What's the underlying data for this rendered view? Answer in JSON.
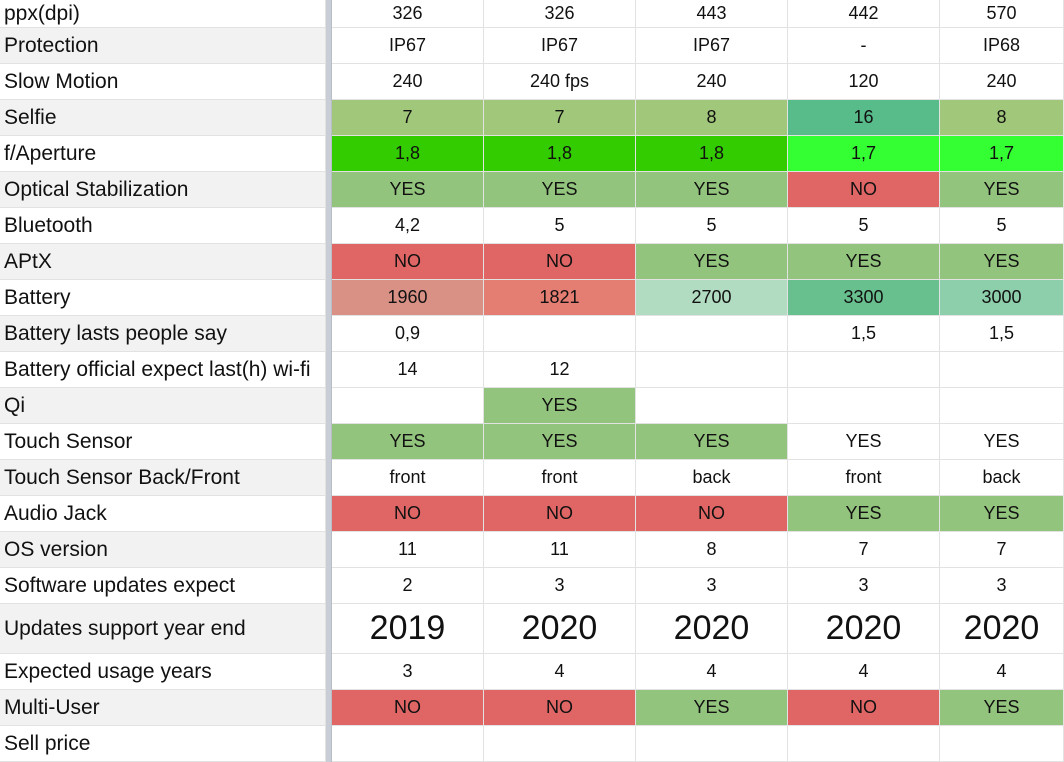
{
  "rows": [
    {
      "label": "ppx(dpi)",
      "values": [
        "326",
        "326",
        "443",
        "442",
        "570"
      ],
      "colors": [
        "",
        "",
        "",
        "",
        ""
      ]
    },
    {
      "label": "Protection",
      "values": [
        "IP67",
        "IP67",
        "IP67",
        "-",
        "IP68"
      ],
      "colors": [
        "",
        "",
        "",
        "",
        ""
      ]
    },
    {
      "label": "Slow Motion",
      "values": [
        "240",
        "240 fps",
        "240",
        "120",
        "240"
      ],
      "colors": [
        "",
        "",
        "",
        "",
        ""
      ]
    },
    {
      "label": "Selfie",
      "values": [
        "7",
        "7",
        "8",
        "16",
        "8"
      ],
      "colors": [
        "#a1c77a",
        "#a1c77a",
        "#a1c77a",
        "#57bb8a",
        "#a1c77a"
      ]
    },
    {
      "label": "f/Aperture",
      "values": [
        "1,8",
        "1,8",
        "1,8",
        "1,7",
        "1,7"
      ],
      "colors": [
        "#33cc00",
        "#33cc00",
        "#33cc00",
        "#33ff33",
        "#33ff33"
      ]
    },
    {
      "label": "Optical Stabilization",
      "values": [
        "YES",
        "YES",
        "YES",
        "NO",
        "YES"
      ],
      "colors": [
        "#93c47d",
        "#93c47d",
        "#93c47d",
        "#e06666",
        "#93c47d"
      ]
    },
    {
      "label": "Bluetooth",
      "values": [
        "4,2",
        "5",
        "5",
        "5",
        "5"
      ],
      "colors": [
        "",
        "",
        "",
        "",
        ""
      ]
    },
    {
      "label": "APtX",
      "values": [
        "NO",
        "NO",
        "YES",
        "YES",
        "YES"
      ],
      "colors": [
        "#e06666",
        "#e06666",
        "#93c47d",
        "#93c47d",
        "#93c47d"
      ]
    },
    {
      "label": "Battery",
      "values": [
        "1960",
        "1821",
        "2700",
        "3300",
        "3000"
      ],
      "colors": [
        "#d99185",
        "#e47d72",
        "#b2dcc2",
        "#69c08f",
        "#8ccfaa"
      ]
    },
    {
      "label": "Battery lasts people say",
      "values": [
        "0,9",
        "",
        "",
        "1,5",
        "1,5"
      ],
      "colors": [
        "",
        "",
        "",
        "",
        ""
      ]
    },
    {
      "label": "Battery official expect last(h) wi-fi",
      "values": [
        "14",
        "12",
        "",
        "",
        ""
      ],
      "colors": [
        "",
        "",
        "",
        "",
        ""
      ]
    },
    {
      "label": "Qi",
      "values": [
        "",
        "YES",
        "",
        "",
        ""
      ],
      "colors": [
        "",
        "#93c47d",
        "",
        "",
        ""
      ]
    },
    {
      "label": "Touch Sensor",
      "values": [
        "YES",
        "YES",
        "YES",
        "YES",
        "YES"
      ],
      "colors": [
        "#93c47d",
        "#93c47d",
        "#93c47d",
        "",
        ""
      ]
    },
    {
      "label": "Touch Sensor Back/Front",
      "values": [
        "front",
        "front",
        "back",
        "front",
        "back"
      ],
      "colors": [
        "",
        "",
        "",
        "",
        ""
      ]
    },
    {
      "label": "Audio Jack",
      "values": [
        "NO",
        "NO",
        "NO",
        "YES",
        "YES"
      ],
      "colors": [
        "#e06666",
        "#e06666",
        "#e06666",
        "#93c47d",
        "#93c47d"
      ]
    },
    {
      "label": "OS version",
      "values": [
        "11",
        "11",
        "8",
        "7",
        "7"
      ],
      "colors": [
        "",
        "",
        "",
        "",
        ""
      ]
    },
    {
      "label": "Software updates expect",
      "values": [
        "2",
        "3",
        "3",
        "3",
        "3"
      ],
      "colors": [
        "",
        "",
        "",
        "",
        ""
      ]
    },
    {
      "label": "Updates support year end",
      "values": [
        "2019",
        "2020",
        "2020",
        "2020",
        "2020"
      ],
      "colors": [
        "",
        "",
        "",
        "",
        ""
      ]
    },
    {
      "label": "Expected usage years",
      "values": [
        "3",
        "4",
        "4",
        "4",
        "4"
      ],
      "colors": [
        "",
        "",
        "",
        "",
        ""
      ]
    },
    {
      "label": "Multi-User",
      "values": [
        "NO",
        "NO",
        "YES",
        "NO",
        "YES"
      ],
      "colors": [
        "#e06666",
        "#e06666",
        "#93c47d",
        "#e06666",
        "#93c47d"
      ]
    },
    {
      "label": "Sell price",
      "values": [
        "",
        "",
        "",
        "",
        ""
      ],
      "colors": [
        "",
        "",
        "",
        "",
        ""
      ]
    }
  ]
}
